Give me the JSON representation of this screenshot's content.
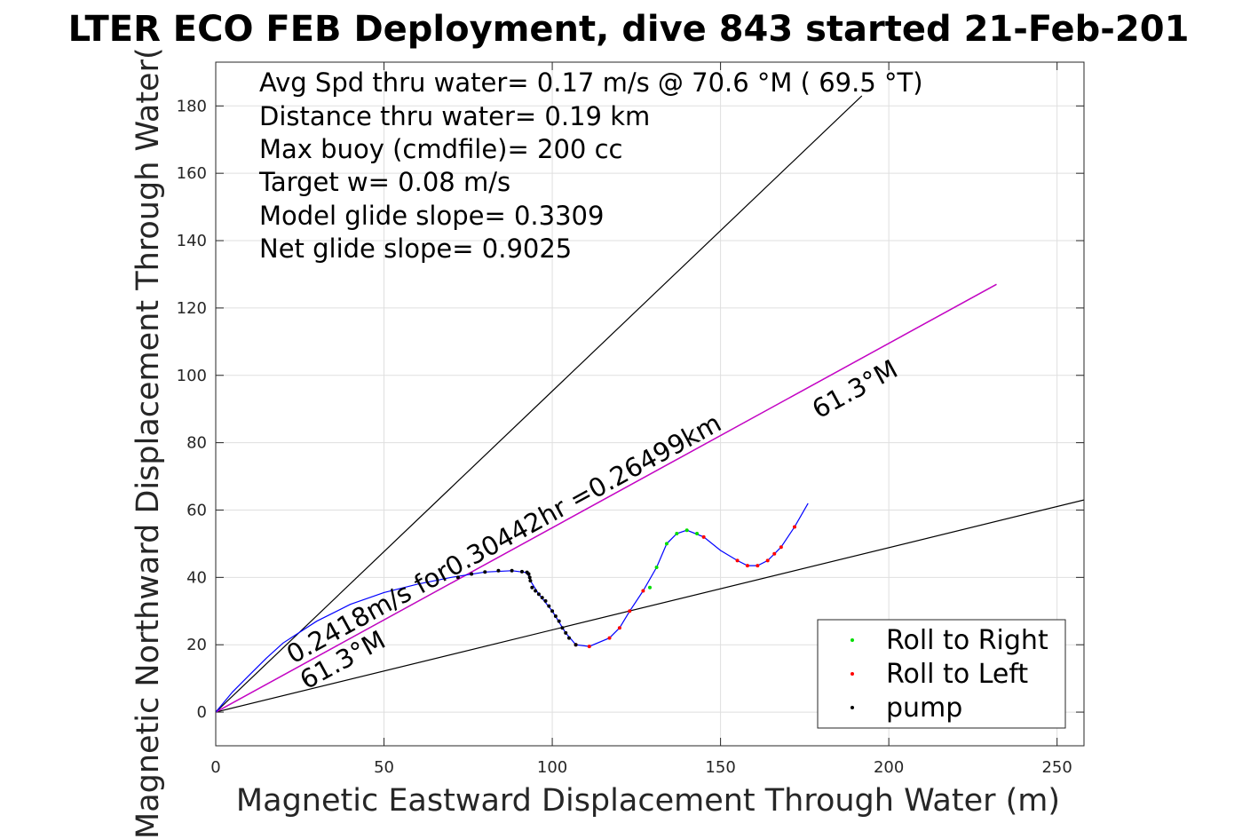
{
  "colors": {
    "track": "#0000ff",
    "glide_line": "#cc00cc",
    "roll_right": "#00dd00",
    "roll_left": "#ff0000",
    "pump": "#000000",
    "bounds": "#000000"
  },
  "chart_data": {
    "type": "line",
    "title": "LTER ECO FEB Deployment, dive 843 started 21-Feb-201",
    "xlabel": "Magnetic Eastward Displacement Through Water (m)",
    "ylabel": "Magnetic Northward Displacement Through Water(",
    "xlim": [
      0,
      258
    ],
    "ylim": [
      -10,
      193
    ],
    "xticks": [
      0,
      50,
      100,
      150,
      200,
      250
    ],
    "yticks": [
      0,
      20,
      40,
      60,
      80,
      100,
      120,
      140,
      160,
      180
    ],
    "xtick_labels": [
      "0",
      "50",
      "100",
      "150",
      "200",
      "250"
    ],
    "ytick_labels": [
      "0",
      "20",
      "40",
      "60",
      "80",
      "100",
      "120",
      "140",
      "160",
      "180"
    ],
    "grid": true,
    "legend_position": "bottom-right",
    "info_lines": [
      "Avg Spd thru water=  0.17 m/s @  70.6 °M ( 69.5 °T)",
      "Distance thru water=  0.19 km",
      "Max buoy (cmdfile)= 200 cc",
      "Target w= 0.08 m/s",
      "Model glide slope= 0.3309",
      "Net glide slope= 0.9025"
    ],
    "annotations": {
      "speed_label": "0.2418m/s for0.30442hr =0.26499km",
      "heading_upper": "61.3°M",
      "heading_lower": "61.3°M"
    },
    "series": [
      {
        "name": "Roll to Right",
        "kind": "points",
        "x": [
          129,
          131,
          134,
          137,
          140,
          143
        ],
        "y": [
          37,
          43,
          50,
          53,
          54,
          53
        ]
      },
      {
        "name": "Roll to Left",
        "kind": "points",
        "x": [
          107,
          111,
          117,
          120,
          123,
          127,
          145,
          155,
          158,
          161,
          164,
          166,
          168,
          172
        ],
        "y": [
          20,
          19.5,
          22,
          25,
          30,
          36,
          52,
          45,
          43.5,
          43.5,
          45,
          47,
          49,
          55
        ]
      },
      {
        "name": "pump",
        "kind": "points",
        "x": [
          72,
          76,
          80,
          84,
          88,
          91,
          92.5,
          93,
          93.3,
          93.5,
          94,
          95,
          96,
          97,
          98,
          99,
          100,
          101,
          102,
          103,
          104,
          105,
          107
        ],
        "y": [
          40,
          41,
          41.6,
          42,
          42,
          41.7,
          41.5,
          41,
          40,
          39,
          37,
          36,
          35,
          34,
          33,
          31.5,
          30,
          28.5,
          27,
          25,
          23.5,
          22,
          20
        ]
      }
    ],
    "track": {
      "x": [
        0,
        5,
        10,
        15,
        20,
        30,
        40,
        50,
        60,
        70,
        80,
        88,
        92,
        93,
        93.5,
        96,
        100,
        104,
        107,
        111,
        117,
        120,
        123,
        127,
        131,
        134,
        137,
        140,
        145,
        150,
        155,
        158,
        161,
        164,
        166,
        168,
        172,
        176
      ],
      "y": [
        0,
        6,
        11,
        16,
        20.5,
        27,
        32,
        35.5,
        38,
        40,
        41.6,
        42,
        41.5,
        40.5,
        39,
        35,
        30,
        23.5,
        20,
        19.5,
        22,
        25,
        30,
        36,
        43,
        50,
        53,
        54,
        52,
        48,
        45,
        43.5,
        43.5,
        45,
        47,
        49,
        55,
        62
      ]
    },
    "reference_lines": [
      {
        "x": [
          0,
          192
        ],
        "y": [
          0,
          183
        ]
      },
      {
        "x": [
          0,
          232
        ],
        "y": [
          0,
          127
        ]
      },
      {
        "x": [
          0,
          258
        ],
        "y": [
          0,
          63
        ]
      }
    ]
  }
}
